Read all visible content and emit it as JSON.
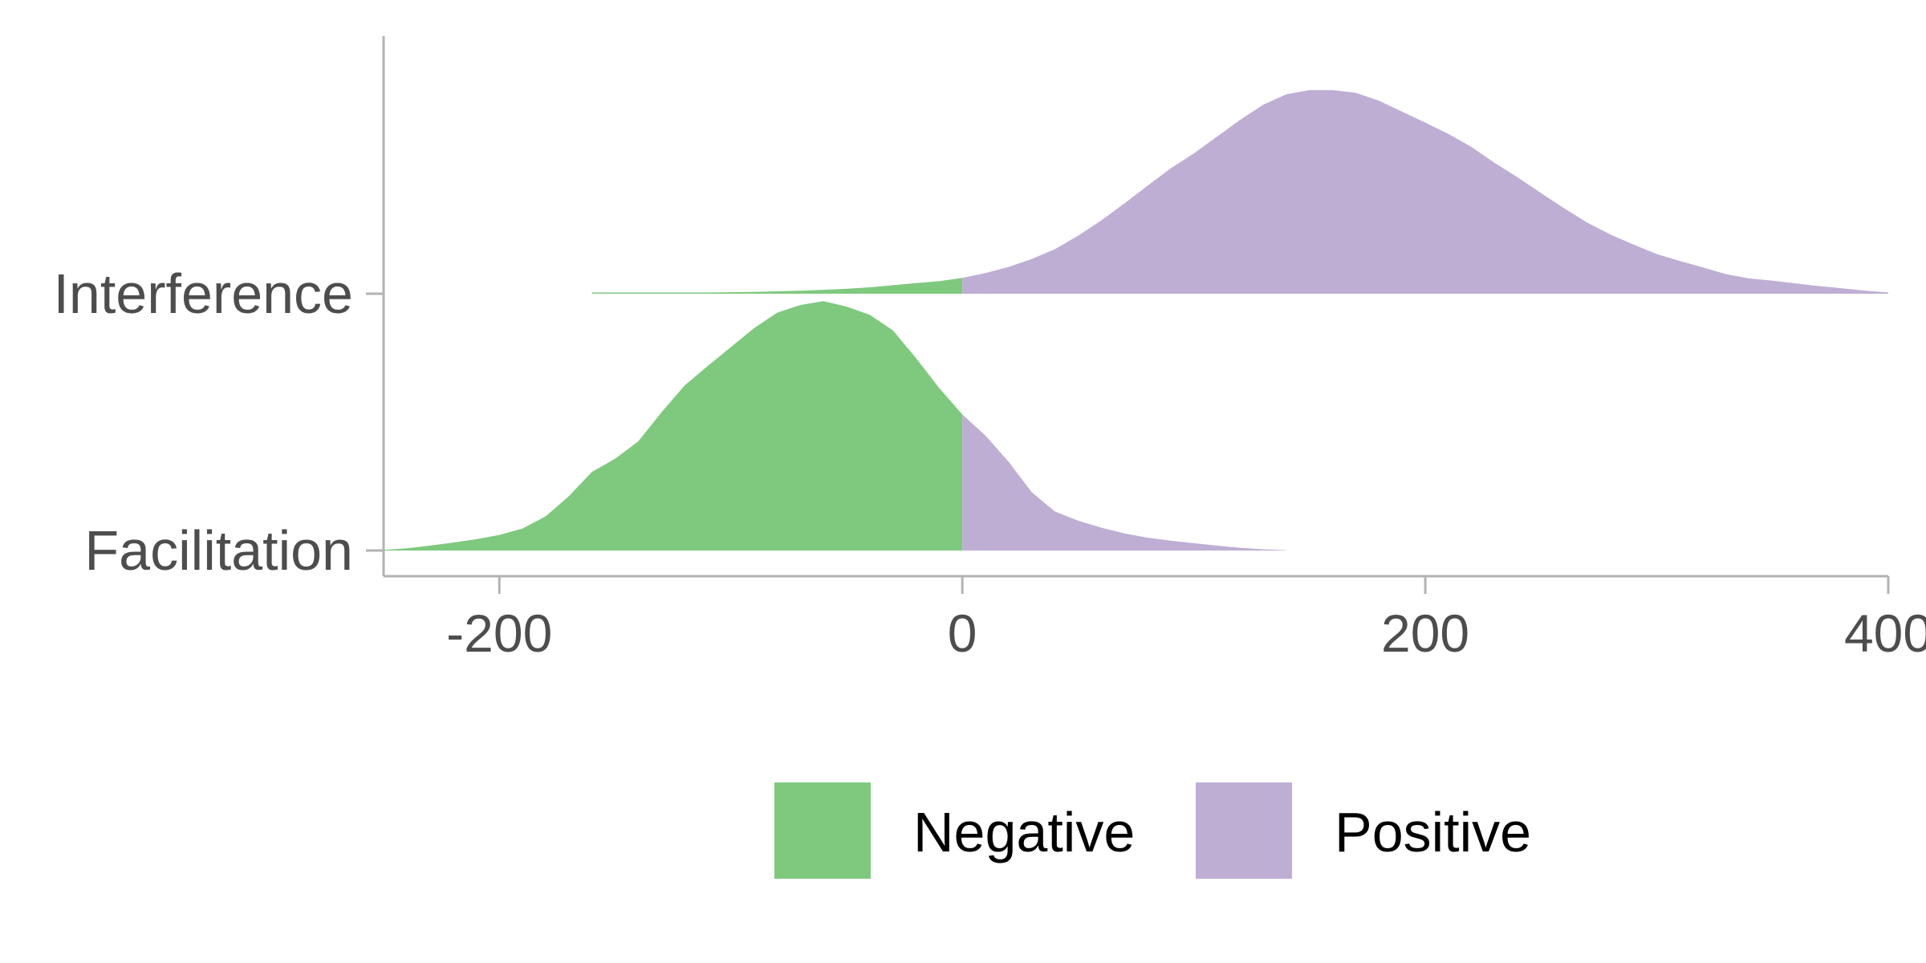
{
  "chart_data": {
    "type": "ridgeline-density",
    "title": "",
    "xlabel": "",
    "ylabel": "",
    "xlim": [
      -250,
      400
    ],
    "x_ticks": [
      -200,
      0,
      200,
      400
    ],
    "x_tick_labels": [
      "-200",
      "0",
      "200",
      "400"
    ],
    "categories": [
      "Facilitation",
      "Interference"
    ],
    "split_at": 0,
    "fill_groups": [
      {
        "name": "Negative",
        "rule": "x < 0",
        "color": "#7fc97f"
      },
      {
        "name": "Positive",
        "rule": "x >= 0",
        "color": "#beaed4"
      }
    ],
    "legend": {
      "position": "bottom",
      "entries": [
        "Negative",
        "Positive"
      ]
    },
    "series": [
      {
        "name": "Facilitation",
        "x": [
          -250,
          -240,
          -230,
          -220,
          -210,
          -200,
          -190,
          -180,
          -170,
          -160,
          -150,
          -140,
          -130,
          -120,
          -110,
          -100,
          -90,
          -80,
          -70,
          -60,
          -50,
          -40,
          -30,
          -20,
          -10,
          0,
          10,
          20,
          30,
          40,
          50,
          60,
          70,
          80,
          90,
          100,
          110,
          120,
          130,
          140
        ],
        "density": [
          0.002,
          0.007,
          0.016,
          0.026,
          0.037,
          0.051,
          0.072,
          0.112,
          0.178,
          0.258,
          0.301,
          0.358,
          0.453,
          0.541,
          0.605,
          0.667,
          0.729,
          0.78,
          0.805,
          0.818,
          0.8,
          0.773,
          0.722,
          0.631,
          0.533,
          0.446,
          0.377,
          0.291,
          0.191,
          0.128,
          0.098,
          0.075,
          0.056,
          0.042,
          0.032,
          0.024,
          0.016,
          0.009,
          0.004,
          0.001
        ]
      },
      {
        "name": "Interference",
        "x": [
          -160,
          -150,
          -140,
          -130,
          -120,
          -110,
          -100,
          -90,
          -80,
          -70,
          -60,
          -50,
          -40,
          -30,
          -20,
          -10,
          0,
          10,
          20,
          30,
          40,
          50,
          60,
          70,
          80,
          90,
          100,
          110,
          120,
          130,
          140,
          150,
          160,
          170,
          180,
          190,
          200,
          210,
          220,
          230,
          240,
          250,
          260,
          270,
          280,
          290,
          300,
          310,
          320,
          330,
          340,
          350,
          360,
          370,
          380,
          390,
          400
        ],
        "density": [
          0.004,
          0.004,
          0.004,
          0.004,
          0.004,
          0.004,
          0.005,
          0.006,
          0.008,
          0.01,
          0.013,
          0.016,
          0.021,
          0.028,
          0.035,
          0.041,
          0.052,
          0.068,
          0.088,
          0.114,
          0.146,
          0.19,
          0.24,
          0.296,
          0.354,
          0.411,
          0.46,
          0.515,
          0.57,
          0.62,
          0.654,
          0.668,
          0.668,
          0.659,
          0.633,
          0.597,
          0.561,
          0.524,
          0.481,
          0.429,
          0.381,
          0.33,
          0.28,
          0.233,
          0.194,
          0.161,
          0.13,
          0.107,
          0.086,
          0.064,
          0.05,
          0.043,
          0.034,
          0.025,
          0.018,
          0.01,
          0.004
        ]
      }
    ]
  }
}
